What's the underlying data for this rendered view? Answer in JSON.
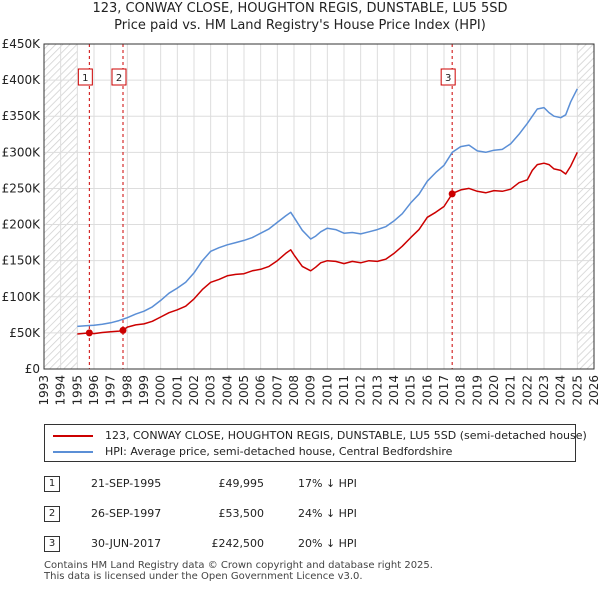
{
  "title_line1": "123, CONWAY CLOSE, HOUGHTON REGIS, DUNSTABLE, LU5 5SD",
  "title_line2": "Price paid vs. HM Land Registry's House Price Index (HPI)",
  "chart_data": {
    "type": "line",
    "title": "123, CONWAY CLOSE, HOUGHTON REGIS, DUNSTABLE, LU5 5SD",
    "subtitle": "Price paid vs. HM Land Registry's House Price Index (HPI)",
    "xlabel": "",
    "ylabel": "",
    "xlim": [
      1993,
      2026
    ],
    "ylim": [
      0,
      450000
    ],
    "y_ticks": [
      0,
      50000,
      100000,
      150000,
      200000,
      250000,
      300000,
      350000,
      400000,
      450000
    ],
    "y_tick_labels": [
      "£0",
      "£50K",
      "£100K",
      "£150K",
      "£200K",
      "£250K",
      "£300K",
      "£350K",
      "£400K",
      "£450K"
    ],
    "x_ticks": [
      1993,
      1994,
      1995,
      1996,
      1997,
      1998,
      1999,
      2000,
      2001,
      2002,
      2003,
      2004,
      2005,
      2006,
      2007,
      2008,
      2009,
      2010,
      2011,
      2012,
      2013,
      2014,
      2015,
      2016,
      2017,
      2018,
      2019,
      2020,
      2021,
      2022,
      2023,
      2024,
      2025,
      2026
    ],
    "x_tick_labels": [
      "1993",
      "1994",
      "1995",
      "1996",
      "1997",
      "1998",
      "1999",
      "2000",
      "2001",
      "2002",
      "2003",
      "2004",
      "2005",
      "2006",
      "2007",
      "2008",
      "2009",
      "2010",
      "2011",
      "2012",
      "2013",
      "2014",
      "2015",
      "2016",
      "2017",
      "2018",
      "2019",
      "2020",
      "2021",
      "2022",
      "2023",
      "2024",
      "2025",
      "2026"
    ],
    "grid": true,
    "hatched_ranges": [
      [
        1993,
        1995.0
      ],
      [
        2025.0,
        2026
      ]
    ],
    "series": [
      {
        "name": "123, CONWAY CLOSE, HOUGHTON REGIS, DUNSTABLE, LU5 5SD (semi-detached house)",
        "color": "#cc0000",
        "x": [
          1995.0,
          1995.72,
          1996.0,
          1996.5,
          1997.0,
          1997.5,
          1997.74,
          1998.0,
          1998.5,
          1999.0,
          1999.5,
          2000.0,
          2000.5,
          2001.0,
          2001.5,
          2002.0,
          2002.5,
          2003.0,
          2003.5,
          2004.0,
          2004.5,
          2005.0,
          2005.5,
          2006.0,
          2006.5,
          2007.0,
          2007.5,
          2007.8,
          2008.0,
          2008.5,
          2009.0,
          2009.3,
          2009.6,
          2010.0,
          2010.5,
          2011.0,
          2011.5,
          2012.0,
          2012.5,
          2013.0,
          2013.5,
          2014.0,
          2014.5,
          2015.0,
          2015.5,
          2016.0,
          2016.5,
          2017.0,
          2017.49,
          2017.5,
          2018.0,
          2018.5,
          2019.0,
          2019.5,
          2020.0,
          2020.5,
          2021.0,
          2021.5,
          2022.0,
          2022.3,
          2022.6,
          2023.0,
          2023.3,
          2023.6,
          2024.0,
          2024.3,
          2024.6,
          2025.0
        ],
        "values": [
          48500,
          49995,
          49000,
          50500,
          51500,
          52500,
          53500,
          58000,
          61000,
          62500,
          66000,
          72000,
          78000,
          82000,
          87000,
          97000,
          110000,
          120000,
          124000,
          129000,
          131000,
          132000,
          136000,
          138000,
          142000,
          150000,
          160000,
          165000,
          158000,
          142000,
          136000,
          141000,
          147000,
          150000,
          149000,
          146000,
          149000,
          147000,
          150000,
          149000,
          152000,
          160000,
          170000,
          182000,
          193000,
          210000,
          217000,
          225000,
          242500,
          243000,
          248000,
          250000,
          246000,
          244000,
          247000,
          246000,
          249000,
          258000,
          262000,
          275000,
          283000,
          285000,
          283000,
          277000,
          275000,
          270000,
          281000,
          300000
        ]
      },
      {
        "name": "HPI: Average price, semi-detached house, Central Bedfordshire",
        "color": "#5b8fd6",
        "x": [
          1995.0,
          1995.5,
          1996.0,
          1996.5,
          1997.0,
          1997.5,
          1998.0,
          1998.5,
          1999.0,
          1999.5,
          2000.0,
          2000.5,
          2001.0,
          2001.5,
          2002.0,
          2002.5,
          2003.0,
          2003.5,
          2004.0,
          2004.5,
          2005.0,
          2005.5,
          2006.0,
          2006.5,
          2007.0,
          2007.5,
          2007.8,
          2008.0,
          2008.5,
          2009.0,
          2009.3,
          2009.6,
          2010.0,
          2010.5,
          2011.0,
          2011.5,
          2012.0,
          2012.5,
          2013.0,
          2013.5,
          2014.0,
          2014.5,
          2015.0,
          2015.5,
          2016.0,
          2016.5,
          2017.0,
          2017.5,
          2018.0,
          2018.5,
          2019.0,
          2019.5,
          2020.0,
          2020.5,
          2021.0,
          2021.5,
          2022.0,
          2022.3,
          2022.6,
          2023.0,
          2023.3,
          2023.6,
          2024.0,
          2024.3,
          2024.6,
          2025.0
        ],
        "values": [
          59000,
          60000,
          60500,
          62000,
          64000,
          67000,
          71000,
          76000,
          80000,
          86000,
          95000,
          105000,
          112000,
          120000,
          133000,
          150000,
          163000,
          168000,
          172000,
          175000,
          178000,
          182000,
          188000,
          194000,
          203000,
          212000,
          217000,
          210000,
          192000,
          180000,
          184000,
          190000,
          195000,
          193000,
          188000,
          189000,
          187000,
          190000,
          193000,
          197000,
          205000,
          215000,
          230000,
          242000,
          260000,
          272000,
          282000,
          300000,
          308000,
          310000,
          302000,
          300000,
          303000,
          304000,
          312000,
          325000,
          340000,
          350000,
          360000,
          362000,
          355000,
          350000,
          348000,
          352000,
          370000,
          388000
        ]
      }
    ],
    "sales": [
      {
        "label": "1",
        "x": 1995.72,
        "value": 49995
      },
      {
        "label": "2",
        "x": 1997.74,
        "value": 53500
      },
      {
        "label": "3",
        "x": 2017.49,
        "value": 242500
      }
    ]
  },
  "legend": {
    "entries": [
      {
        "label": "123, CONWAY CLOSE, HOUGHTON REGIS, DUNSTABLE, LU5 5SD (semi-detached house)",
        "color": "#cc0000"
      },
      {
        "label": "HPI: Average price, semi-detached house, Central Bedfordshire",
        "color": "#5b8fd6"
      }
    ]
  },
  "sales_table": [
    {
      "num": "1",
      "date": "21-SEP-1995",
      "price": "£49,995",
      "delta": "17% ↓ HPI"
    },
    {
      "num": "2",
      "date": "26-SEP-1997",
      "price": "£53,500",
      "delta": "24% ↓ HPI"
    },
    {
      "num": "3",
      "date": "30-JUN-2017",
      "price": "£242,500",
      "delta": "20% ↓ HPI"
    }
  ],
  "footer": {
    "line1": "Contains HM Land Registry data © Crown copyright and database right 2025.",
    "line2": "This data is licensed under the Open Government Licence v3.0."
  }
}
